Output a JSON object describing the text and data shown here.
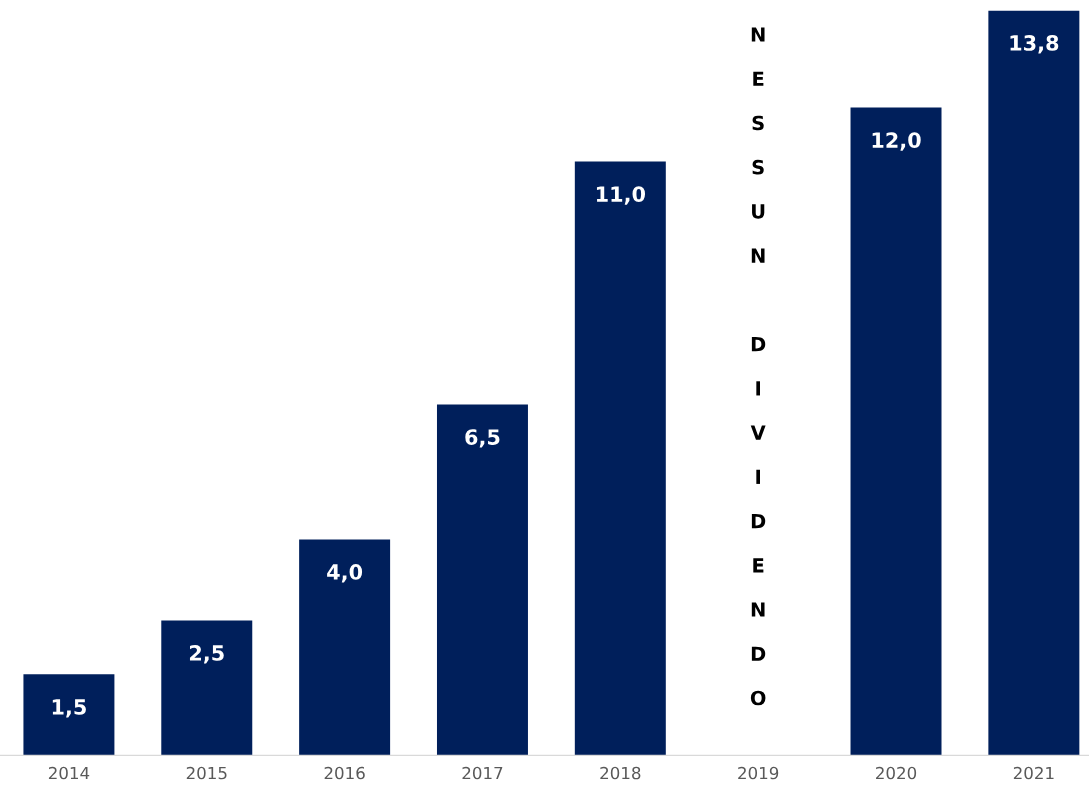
{
  "chart_data": {
    "type": "bar",
    "categories": [
      "2014",
      "2015",
      "2016",
      "2017",
      "2018",
      "2019",
      "2020",
      "2021"
    ],
    "values": [
      1.5,
      2.5,
      4.0,
      6.5,
      11.0,
      null,
      12.0,
      13.8
    ],
    "value_labels": [
      "1,5",
      "2,5",
      "4,0",
      "6,5",
      "11,0",
      null,
      "12,0",
      "13,8"
    ],
    "color": "#001f5b",
    "annotations": [
      "NESSUN DIVIDENDO"
    ],
    "grid": false,
    "legend": false
  }
}
